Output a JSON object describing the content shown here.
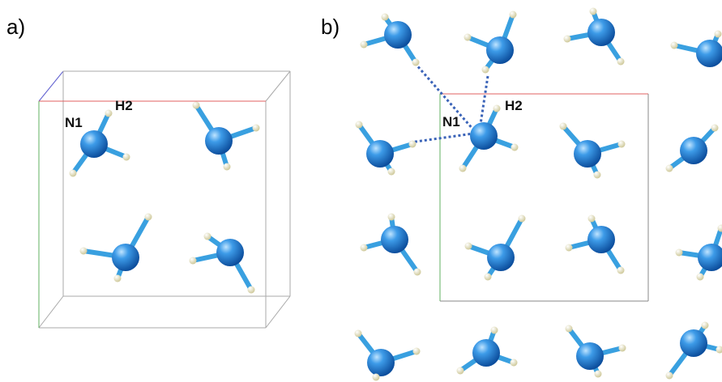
{
  "panels": [
    {
      "label": "a)",
      "atom_labels": {
        "n": "N1",
        "h": "H2"
      }
    },
    {
      "label": "b)",
      "atom_labels": {
        "n": "N1",
        "h": "H2"
      }
    }
  ],
  "colors": {
    "nitrogen": "#1f7fd8",
    "hydrogen": "#f0ecc4",
    "bond": "#39a0e0",
    "hbond": "#3a63b8",
    "axis_a": "#e06060",
    "axis_b": "#60b060",
    "axis_c": "#6060d0",
    "cell_edge": "#999999"
  }
}
